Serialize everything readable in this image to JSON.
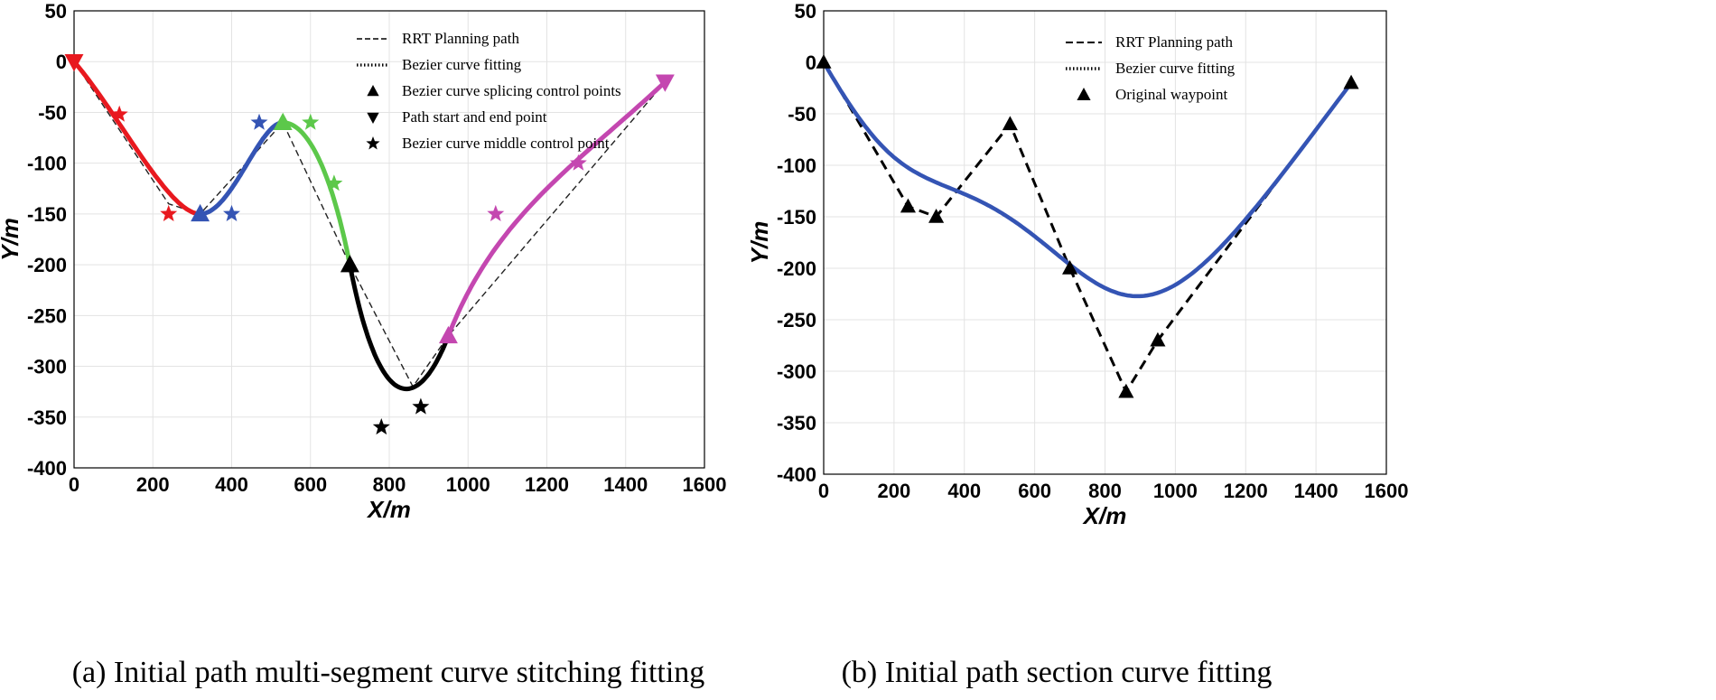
{
  "chart_data": [
    {
      "id": "a",
      "type": "line",
      "caption": "(a) Initial path multi-segment curve stitching fitting",
      "xlabel": "X/m",
      "ylabel": "Y/m",
      "xlim": [
        0,
        1600
      ],
      "ylim": [
        -400,
        50
      ],
      "xticks": [
        "0",
        "200",
        "400",
        "600",
        "800",
        "1000",
        "1200",
        "1400",
        "1600"
      ],
      "yticks": [
        "50",
        "0",
        "-50",
        "-100",
        "-150",
        "-200",
        "-250",
        "-300",
        "-350",
        "-400"
      ],
      "legend": {
        "position": "top-right",
        "entries": [
          {
            "label": "RRT Planning path",
            "marker": "dashed"
          },
          {
            "label": "Bezier curve fitting",
            "marker": "dotted"
          },
          {
            "label": "Bezier curve splicing control points",
            "marker": "triangle-up"
          },
          {
            "label": "Path start and end point",
            "marker": "triangle-down"
          },
          {
            "label": "Bezier curve middle control point",
            "marker": "star"
          }
        ]
      },
      "rrt_path": {
        "x": [
          0,
          240,
          320,
          530,
          700,
          860,
          950,
          1500
        ],
        "y": [
          0,
          -140,
          -150,
          -60,
          -200,
          -320,
          -270,
          -20
        ]
      },
      "segments": [
        {
          "name": "segment-1",
          "color": "#e8191f",
          "points": [
            [
              0,
              0
            ],
            [
              115,
              -52
            ],
            [
              240,
              -150
            ],
            [
              320,
              -150
            ]
          ]
        },
        {
          "name": "segment-2",
          "color": "#3454b4",
          "points": [
            [
              320,
              -150
            ],
            [
              400,
              -150
            ],
            [
              470,
              -60
            ],
            [
              530,
              -60
            ]
          ]
        },
        {
          "name": "segment-3",
          "color": "#5cc84a",
          "points": [
            [
              530,
              -60
            ],
            [
              600,
              -60
            ],
            [
              660,
              -120
            ],
            [
              700,
              -200
            ]
          ]
        },
        {
          "name": "segment-4",
          "color": "#000000",
          "points": [
            [
              700,
              -200
            ],
            [
              780,
              -360
            ],
            [
              880,
              -340
            ],
            [
              950,
              -270
            ]
          ]
        },
        {
          "name": "segment-5",
          "color": "#c447b0",
          "points": [
            [
              950,
              -270
            ],
            [
              1070,
              -150
            ],
            [
              1280,
              -100
            ],
            [
              1500,
              -20
            ]
          ]
        }
      ]
    },
    {
      "id": "b",
      "type": "line",
      "caption": "(b) Initial path section curve fitting",
      "xlabel": "X/m",
      "ylabel": "Y/m",
      "xlim": [
        0,
        1600
      ],
      "ylim": [
        -400,
        50
      ],
      "xticks": [
        "0",
        "200",
        "400",
        "600",
        "800",
        "1000",
        "1200",
        "1400",
        "1600"
      ],
      "yticks": [
        "50",
        "0",
        "-50",
        "-100",
        "-150",
        "-200",
        "-250",
        "-300",
        "-350",
        "-400"
      ],
      "legend": {
        "position": "top-right",
        "entries": [
          {
            "label": "RRT Planning path",
            "marker": "dashed"
          },
          {
            "label": "Bezier curve fitting",
            "marker": "dotted"
          },
          {
            "label": "Original  waypoint",
            "marker": "triangle-up"
          }
        ]
      },
      "waypoints": {
        "x": [
          0,
          240,
          320,
          530,
          700,
          860,
          950,
          1500
        ],
        "y": [
          0,
          -140,
          -150,
          -60,
          -200,
          -320,
          -270,
          -20
        ]
      },
      "bezier_color": "#3454b4"
    }
  ]
}
